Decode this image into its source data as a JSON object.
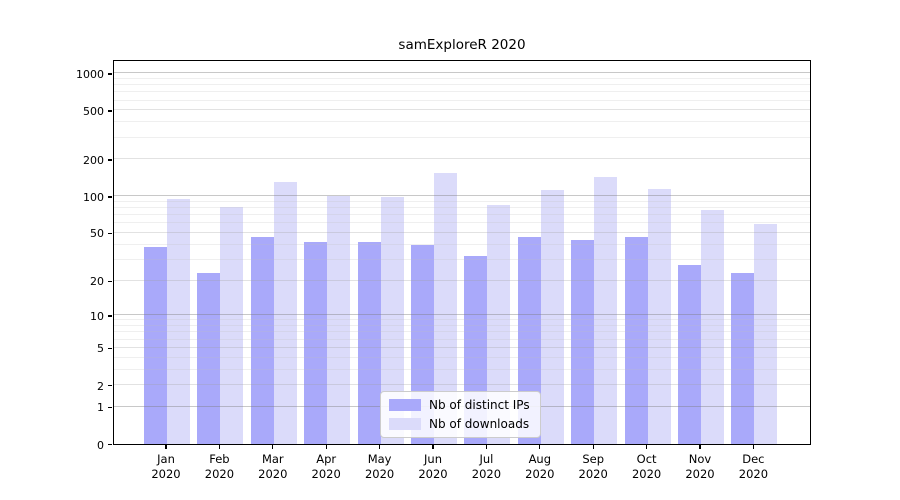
{
  "chart_data": {
    "type": "bar",
    "title": "samExploreR 2020",
    "categories": [
      "Jan\n2020",
      "Feb\n2020",
      "Mar\n2020",
      "Apr\n2020",
      "May\n2020",
      "Jun\n2020",
      "Jul\n2020",
      "Aug\n2020",
      "Sep\n2020",
      "Oct\n2020",
      "Nov\n2020",
      "Dec\n2020"
    ],
    "series": [
      {
        "name": "Nb of distinct IPs",
        "color": "#a9a9fa",
        "values": [
          38,
          23,
          46,
          42,
          42,
          40,
          32,
          46,
          44,
          46,
          27,
          23
        ]
      },
      {
        "name": "Nb of downloads",
        "color": "#dbdbfa",
        "values": [
          95,
          82,
          130,
          100,
          98,
          155,
          85,
          112,
          145,
          114,
          78,
          59
        ]
      }
    ],
    "yscale": "log1p",
    "ylim": [
      0,
      1270
    ],
    "yticks": [
      0,
      1,
      2,
      5,
      10,
      20,
      50,
      100,
      200,
      500,
      1000
    ],
    "grid": true,
    "gridlines": {
      "major": [
        1,
        10,
        100,
        1000
      ],
      "mid": [
        2,
        5,
        20,
        50,
        200,
        500
      ],
      "minor": [
        3,
        4,
        6,
        7,
        8,
        9,
        30,
        40,
        60,
        70,
        80,
        90,
        300,
        400,
        600,
        700,
        800,
        900
      ]
    },
    "legend_position": "inside-bottom-center",
    "colors": {
      "axis": "#000000",
      "grid_major": "rgba(125,125,125,0.42)",
      "grid_mid": "rgba(160,160,160,0.30)",
      "grid_minor": "rgba(190,190,190,0.25)",
      "legend_border": "#cccccc"
    }
  }
}
